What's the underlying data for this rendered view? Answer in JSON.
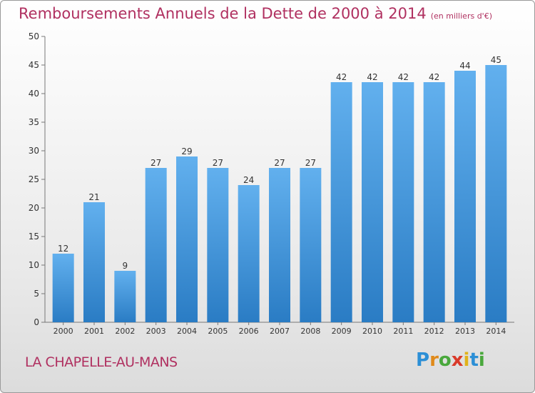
{
  "chart_data": {
    "type": "bar",
    "title": "Remboursements Annuels de la Dette de 2000 à 2014",
    "unit": "(en milliers d'€)",
    "categories": [
      "2000",
      "2001",
      "2002",
      "2003",
      "2004",
      "2005",
      "2006",
      "2007",
      "2008",
      "2009",
      "2010",
      "2011",
      "2012",
      "2013",
      "2014"
    ],
    "values": [
      12,
      21,
      9,
      27,
      29,
      27,
      24,
      27,
      27,
      42,
      42,
      42,
      42,
      44,
      45
    ],
    "ylim": [
      0,
      50
    ],
    "yticks": [
      0,
      5,
      10,
      15,
      20,
      25,
      30,
      35,
      40,
      45,
      50
    ],
    "grid": false,
    "bar_color": "#3d8fd6"
  },
  "footer": {
    "city": "LA CHAPELLE-AU-MANS",
    "logo": "Proxiti"
  }
}
